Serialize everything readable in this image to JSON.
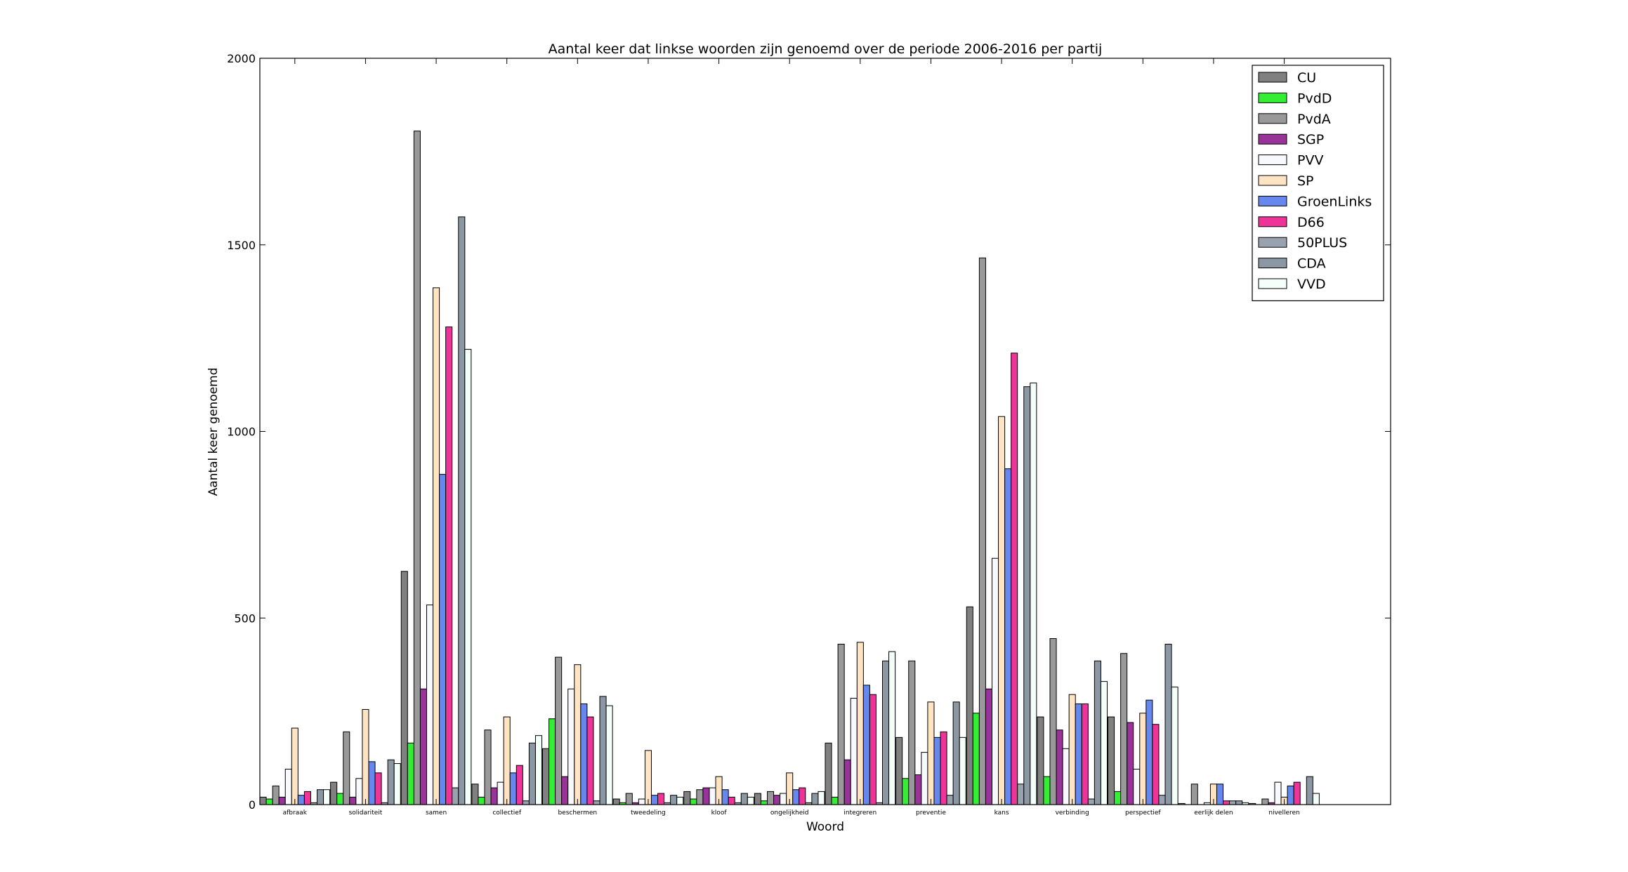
{
  "chart_data": {
    "type": "bar",
    "title": "Aantal keer dat linkse woorden zijn genoemd over de periode 2006-2016 per partij",
    "xlabel": "Woord",
    "ylabel": "Aantal keer genoemd",
    "ylim": [
      0,
      2000
    ],
    "yticks": [
      0,
      500,
      1000,
      1500,
      2000
    ],
    "grid": false,
    "legend_position": "top-right",
    "categories": [
      "afbraak",
      "solidariteit",
      "samen",
      "collectief",
      "beschermen",
      "tweedeling",
      "kloof",
      "ongelijkheid",
      "integreren",
      "preventie",
      "kans",
      "verbinding",
      "perspectief",
      "eerlijk delen",
      "nivelleren"
    ],
    "series": [
      {
        "name": "CU",
        "color": "#808080",
        "values": [
          20,
          60,
          625,
          55,
          150,
          15,
          35,
          30,
          165,
          180,
          530,
          235,
          235,
          3,
          3
        ]
      },
      {
        "name": "PvdD",
        "color": "#33ee33",
        "values": [
          15,
          30,
          165,
          20,
          230,
          5,
          15,
          10,
          20,
          70,
          245,
          75,
          35,
          0,
          0
        ]
      },
      {
        "name": "PvdA",
        "color": "#999999",
        "values": [
          50,
          195,
          1805,
          200,
          395,
          30,
          40,
          35,
          430,
          385,
          1465,
          445,
          405,
          55,
          15
        ]
      },
      {
        "name": "SGP",
        "color": "#993399",
        "values": [
          20,
          20,
          310,
          45,
          75,
          5,
          45,
          25,
          120,
          80,
          310,
          200,
          220,
          0,
          5
        ]
      },
      {
        "name": "PVV",
        "color": "#f8f8ff",
        "values": [
          95,
          70,
          535,
          60,
          310,
          15,
          45,
          30,
          285,
          140,
          660,
          150,
          95,
          5,
          60
        ]
      },
      {
        "name": "SP",
        "color": "#ffe4c4",
        "values": [
          205,
          255,
          1385,
          235,
          375,
          145,
          75,
          85,
          435,
          275,
          1040,
          295,
          245,
          55,
          20
        ]
      },
      {
        "name": "GroenLinks",
        "color": "#6688ee",
        "values": [
          25,
          115,
          885,
          85,
          270,
          25,
          40,
          40,
          320,
          180,
          900,
          270,
          280,
          55,
          50
        ]
      },
      {
        "name": "D66",
        "color": "#ee3399",
        "values": [
          35,
          85,
          1280,
          105,
          235,
          30,
          20,
          45,
          295,
          195,
          1210,
          270,
          215,
          10,
          60
        ]
      },
      {
        "name": "50PLUS",
        "color": "#99a3b0",
        "values": [
          5,
          5,
          45,
          10,
          10,
          5,
          5,
          5,
          5,
          25,
          55,
          15,
          25,
          10,
          0
        ]
      },
      {
        "name": "CDA",
        "color": "#8c97a4",
        "values": [
          40,
          120,
          1575,
          165,
          290,
          25,
          30,
          30,
          385,
          275,
          1120,
          385,
          430,
          10,
          75
        ]
      },
      {
        "name": "VVD",
        "color": "#f5fffa",
        "values": [
          40,
          110,
          1220,
          185,
          265,
          20,
          20,
          35,
          410,
          180,
          1130,
          330,
          315,
          5,
          30
        ]
      }
    ]
  }
}
